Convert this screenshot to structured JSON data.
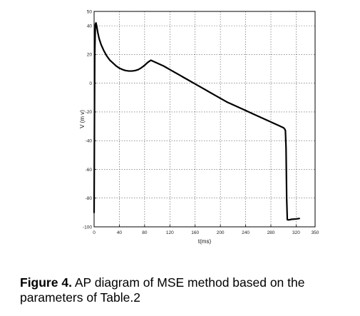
{
  "chart_data": {
    "type": "line",
    "title": "",
    "xlabel": "t(ms)",
    "ylabel": "V (m v)",
    "xlim": [
      0,
      350
    ],
    "ylim": [
      -100,
      50
    ],
    "xticks": [
      "0",
      "40",
      "80",
      "120",
      "160",
      "200",
      "240",
      "280",
      "320",
      "350"
    ],
    "yticks": [
      "50",
      "40",
      "20",
      "0",
      "-20",
      "-40",
      "-60",
      "-80",
      "-100"
    ],
    "grid": true,
    "legend": "none",
    "line_color": "#000000",
    "series": [
      {
        "x": [
          0,
          1,
          2,
          3,
          4,
          6,
          8,
          11,
          15,
          20,
          25,
          30,
          35,
          40,
          45,
          50,
          55,
          60,
          65,
          70,
          75,
          80,
          85,
          90,
          95,
          100,
          110,
          120,
          130,
          140,
          150,
          160,
          170,
          180,
          190,
          200,
          210,
          220,
          230,
          240,
          250,
          260,
          270,
          280,
          290,
          300,
          302,
          303,
          304,
          305,
          306,
          308,
          312,
          320,
          325
        ],
        "y": [
          -90,
          20,
          41,
          42,
          40,
          35,
          31,
          27,
          23,
          19,
          16,
          14,
          12,
          10.5,
          9.5,
          8.8,
          8.5,
          8.5,
          8.8,
          9.5,
          10.8,
          12.5,
          14.5,
          16,
          15,
          14,
          12,
          9.5,
          7,
          4.5,
          2,
          -0.5,
          -3,
          -5.5,
          -8,
          -10.5,
          -13,
          -15,
          -17,
          -19,
          -21,
          -23,
          -25,
          -27,
          -29,
          -31,
          -32,
          -33,
          -45,
          -80,
          -95,
          -95.2,
          -94.8,
          -94.5,
          -94.2
        ]
      }
    ]
  },
  "caption": {
    "label": "Figure 4.",
    "text": "  AP diagram of MSE method based on the parameters of Table.2"
  }
}
